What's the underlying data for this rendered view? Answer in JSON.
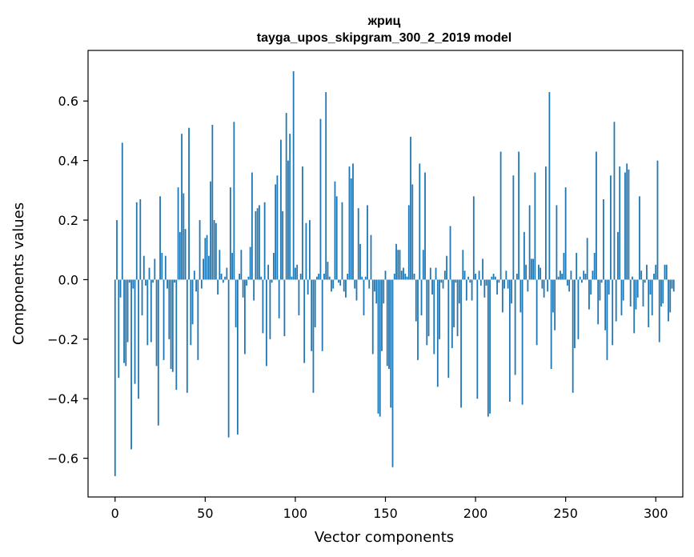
{
  "chart_data": {
    "type": "bar",
    "title_line1": "жриц",
    "title_line2": "tayga_upos_skipgram_300_2_2019 model",
    "xlabel": "Vector components",
    "ylabel": "Components values",
    "xlim": [
      -15,
      315
    ],
    "ylim": [
      -0.73,
      0.77
    ],
    "xticks": [
      0,
      50,
      100,
      150,
      200,
      250,
      300
    ],
    "yticks": [
      -0.6,
      -0.4,
      -0.2,
      0.0,
      0.2,
      0.4,
      0.6
    ],
    "ytick_labels": [
      "−0.6",
      "−0.4",
      "−0.2",
      "0.0",
      "0.2",
      "0.4",
      "0.6"
    ],
    "bar_color": "#1f77b4",
    "values": [
      -0.66,
      0.2,
      -0.33,
      -0.06,
      0.46,
      -0.28,
      -0.29,
      -0.21,
      -0.01,
      -0.57,
      -0.03,
      -0.35,
      0.26,
      -0.4,
      0.27,
      -0.12,
      0.08,
      -0.02,
      -0.22,
      0.04,
      -0.21,
      -0.01,
      0.07,
      -0.29,
      -0.49,
      0.28,
      0.09,
      -0.27,
      0.08,
      -0.03,
      -0.2,
      -0.3,
      -0.31,
      -0.01,
      -0.37,
      0.31,
      0.16,
      0.49,
      0.29,
      0.17,
      -0.38,
      0.51,
      -0.22,
      -0.15,
      0.03,
      -0.04,
      -0.27,
      0.2,
      -0.03,
      0.07,
      0.14,
      0.15,
      0.08,
      0.33,
      0.52,
      0.2,
      0.19,
      -0.05,
      0.1,
      0.02,
      -0.01,
      0.01,
      0.04,
      -0.53,
      0.31,
      0.09,
      0.53,
      -0.16,
      -0.52,
      0.02,
      0.1,
      -0.06,
      -0.25,
      -0.02,
      0.01,
      0.11,
      0.36,
      -0.07,
      0.23,
      0.24,
      0.25,
      0.01,
      -0.18,
      0.26,
      -0.29,
      0.05,
      -0.2,
      -0.01,
      0.09,
      0.32,
      0.35,
      -0.13,
      0.47,
      0.23,
      -0.19,
      0.56,
      0.4,
      0.49,
      0.01,
      0.7,
      0.04,
      0.05,
      -0.12,
      0.02,
      0.38,
      -0.28,
      0.19,
      -0.05,
      0.2,
      -0.24,
      -0.38,
      -0.16,
      0.01,
      0.02,
      0.54,
      -0.24,
      0.02,
      0.63,
      0.06,
      0.01,
      -0.04,
      -0.03,
      0.33,
      0.28,
      -0.01,
      -0.02,
      0.26,
      -0.04,
      -0.06,
      0.02,
      0.38,
      0.34,
      0.39,
      -0.03,
      -0.07,
      0.24,
      0.12,
      0.01,
      -0.12,
      0.01,
      0.25,
      -0.03,
      0.15,
      -0.25,
      -0.04,
      -0.08,
      -0.45,
      -0.46,
      -0.24,
      -0.08,
      0.03,
      -0.29,
      -0.3,
      -0.43,
      -0.63,
      0.02,
      0.12,
      0.1,
      0.1,
      0.03,
      0.04,
      0.02,
      0.01,
      0.25,
      0.48,
      0.32,
      0.02,
      -0.14,
      -0.27,
      0.39,
      -0.12,
      0.1,
      0.36,
      -0.22,
      -0.19,
      0.04,
      -0.05,
      -0.25,
      0.04,
      -0.36,
      -0.2,
      -0.01,
      -0.03,
      0.03,
      0.08,
      -0.33,
      0.18,
      -0.23,
      -0.16,
      -0.01,
      -0.19,
      -0.08,
      -0.43,
      0.1,
      0.03,
      -0.07,
      0.01,
      -0.01,
      -0.07,
      0.28,
      0.02,
      -0.4,
      0.03,
      -0.02,
      0.07,
      -0.06,
      -0.02,
      -0.46,
      -0.45,
      0.01,
      0.02,
      0.01,
      -0.05,
      -0.01,
      0.43,
      -0.11,
      -0.03,
      0.03,
      -0.03,
      -0.41,
      -0.08,
      0.35,
      -0.32,
      0.02,
      0.43,
      -0.11,
      -0.42,
      0.16,
      0.05,
      -0.04,
      0.25,
      0.07,
      0.07,
      0.36,
      -0.22,
      0.05,
      0.04,
      -0.03,
      -0.06,
      0.38,
      -0.04,
      0.63,
      -0.3,
      -0.11,
      -0.17,
      0.25,
      0.01,
      0.03,
      0.02,
      0.09,
      0.31,
      -0.02,
      -0.04,
      0.03,
      -0.38,
      -0.23,
      0.09,
      -0.2,
      0.01,
      -0.01,
      0.03,
      0.02,
      0.14,
      -0.1,
      -0.05,
      0.03,
      0.09,
      0.43,
      -0.15,
      -0.07,
      -0.01,
      0.27,
      -0.17,
      -0.27,
      -0.05,
      0.35,
      -0.22,
      0.53,
      -0.14,
      0.16,
      0.38,
      -0.12,
      -0.07,
      0.36,
      0.39,
      0.37,
      -0.09,
      0.01,
      -0.18,
      -0.1,
      -0.06,
      0.28,
      0.03,
      -0.09,
      -0.01,
      0.05,
      -0.16,
      -0.05,
      -0.12,
      0.02,
      0.05,
      0.4,
      -0.21,
      -0.09,
      -0.08,
      0.05,
      0.05,
      -0.14,
      -0.11,
      -0.03,
      -0.04
    ]
  }
}
